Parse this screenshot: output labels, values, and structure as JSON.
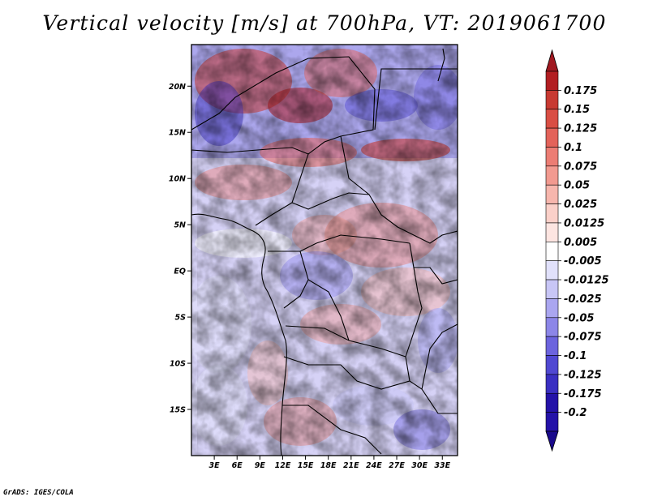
{
  "title": "Vertical velocity [m/s] at 700hPa, VT: 2019061700",
  "credit": "GrADS: IGES/COLA",
  "map": {
    "lon_range": [
      0,
      35
    ],
    "lat_range": [
      -20,
      24.5
    ],
    "lon_ticks": [
      {
        "lon": 3,
        "label": "3E"
      },
      {
        "lon": 6,
        "label": "6E"
      },
      {
        "lon": 9,
        "label": "9E"
      },
      {
        "lon": 12,
        "label": "12E"
      },
      {
        "lon": 15,
        "label": "15E"
      },
      {
        "lon": 18,
        "label": "18E"
      },
      {
        "lon": 21,
        "label": "21E"
      },
      {
        "lon": 24,
        "label": "24E"
      },
      {
        "lon": 27,
        "label": "27E"
      },
      {
        "lon": 30,
        "label": "30E"
      },
      {
        "lon": 33,
        "label": "33E"
      }
    ],
    "lat_ticks": [
      {
        "lat": 20,
        "label": "20N"
      },
      {
        "lat": 15,
        "label": "15N"
      },
      {
        "lat": 10,
        "label": "10N"
      },
      {
        "lat": 5,
        "label": "5N"
      },
      {
        "lat": 0,
        "label": "EQ"
      },
      {
        "lat": -5,
        "label": "5S"
      },
      {
        "lat": -10,
        "label": "10S"
      },
      {
        "lat": -15,
        "label": "15S"
      }
    ]
  },
  "colorbar": {
    "top_arrow_color": "#a01820",
    "bottom_arrow_color": "#1a0a8c",
    "levels": [
      {
        "label": "0.175",
        "color": "#b21e22"
      },
      {
        "label": "0.15",
        "color": "#c83a32"
      },
      {
        "label": "0.125",
        "color": "#d94e44"
      },
      {
        "label": "0.1",
        "color": "#e3635a"
      },
      {
        "label": "0.075",
        "color": "#ec7d74"
      },
      {
        "label": "0.05",
        "color": "#f29a90"
      },
      {
        "label": "0.025",
        "color": "#f7b6ad"
      },
      {
        "label": "0.0125",
        "color": "#fbd0c9"
      },
      {
        "label": "0.005",
        "color": "#fde5e1"
      },
      {
        "label": "-0.005",
        "color": "#ffffff"
      },
      {
        "label": "-0.0125",
        "color": "#e1e1fb"
      },
      {
        "label": "-0.025",
        "color": "#c8c6f6"
      },
      {
        "label": "-0.05",
        "color": "#aaa6f0"
      },
      {
        "label": "-0.075",
        "color": "#8c86e8"
      },
      {
        "label": "-0.1",
        "color": "#6c64de"
      },
      {
        "label": "-0.125",
        "color": "#5048d2"
      },
      {
        "label": "-0.175",
        "color": "#3a2fc2"
      },
      {
        "label": "-0.2",
        "color": "#2412a8"
      }
    ]
  }
}
